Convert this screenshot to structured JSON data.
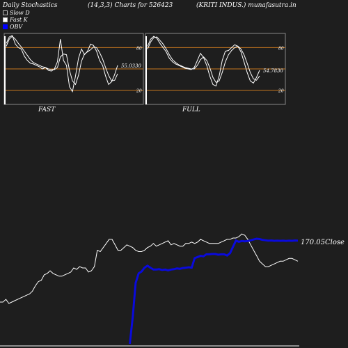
{
  "header": {
    "title": "Daily Stochastics",
    "params": "(14,3,3) Charts for 526423",
    "company": "(KRITI INDUS.) munafasutra.in"
  },
  "legend": [
    {
      "label": "Slow  D",
      "color": "#ffffff"
    },
    {
      "label": "Fast K",
      "color": "#ffffff"
    },
    {
      "label": "OBV",
      "color": "#0000ff"
    }
  ],
  "colors": {
    "background": "#1e1e1e",
    "panel_bg": "#1e1e1e",
    "level_line": "#c8781e",
    "obv": "#0a0adc",
    "close": "#ffffff"
  },
  "chart_data": [
    {
      "type": "line",
      "title": "FAST",
      "ylim": [
        0,
        100
      ],
      "levels": [
        20,
        50,
        80
      ],
      "level_labels": [
        "20",
        "80"
      ],
      "last_value_label": "55.0330",
      "series": [
        {
          "name": "Fast K",
          "values": [
            86,
            95,
            97,
            85,
            80,
            78,
            68,
            62,
            58,
            57,
            55,
            53,
            50,
            52,
            48,
            47,
            50,
            60,
            92,
            62,
            55,
            25,
            18,
            40,
            65,
            78,
            70,
            75,
            85,
            83,
            75,
            62,
            55,
            40,
            28,
            32,
            42,
            55
          ]
        },
        {
          "name": "Slow  D",
          "values": [
            82,
            92,
            96,
            92,
            86,
            81,
            75,
            69,
            63,
            59,
            57,
            55,
            53,
            52,
            50,
            49,
            49,
            52,
            67,
            71,
            70,
            48,
            33,
            28,
            41,
            61,
            71,
            74,
            77,
            81,
            80,
            73,
            64,
            52,
            41,
            33,
            34,
            43
          ]
        }
      ]
    },
    {
      "type": "line",
      "title": "FULL",
      "ylim": [
        0,
        100
      ],
      "levels": [
        20,
        50,
        80
      ],
      "level_labels": [
        "20",
        "80"
      ],
      "last_value_label": "54.7830",
      "series": [
        {
          "name": "Fast K",
          "values": [
            82,
            92,
            96,
            93,
            86,
            80,
            74,
            65,
            60,
            57,
            55,
            53,
            51,
            50,
            49,
            52,
            62,
            72,
            66,
            55,
            40,
            28,
            26,
            40,
            62,
            75,
            76,
            80,
            84,
            82,
            74,
            60,
            45,
            33,
            30,
            38,
            48
          ]
        },
        {
          "name": "Slow  D",
          "values": [
            78,
            88,
            94,
            95,
            90,
            85,
            78,
            70,
            63,
            59,
            56,
            54,
            52,
            51,
            50,
            50,
            55,
            63,
            67,
            62,
            52,
            38,
            31,
            33,
            45,
            60,
            70,
            76,
            80,
            82,
            78,
            70,
            58,
            45,
            36,
            34,
            40
          ]
        }
      ]
    },
    {
      "type": "line",
      "title": "",
      "close_label": "170.05Close",
      "series": [
        {
          "name": "Close",
          "values": [
            140,
            140,
            142,
            139,
            140,
            141,
            142,
            143,
            144,
            145,
            146,
            148,
            152,
            155,
            156,
            160,
            161,
            163,
            161,
            160,
            159,
            159,
            160,
            161,
            162,
            165,
            164,
            166,
            165,
            165,
            162,
            163,
            166,
            178,
            177,
            180,
            183,
            186,
            186,
            182,
            178,
            178,
            180,
            182,
            181,
            180,
            178,
            177,
            177,
            178,
            180,
            181,
            183,
            181,
            182,
            183,
            184,
            185,
            182,
            183,
            182,
            181,
            181,
            183,
            183,
            184,
            183,
            184,
            186,
            185,
            184,
            183,
            183,
            183,
            183,
            184,
            185,
            186,
            186,
            187,
            187,
            188,
            190,
            189,
            186,
            182,
            178,
            174,
            170,
            168,
            166,
            166,
            167,
            168,
            169,
            170,
            170,
            171,
            172,
            172,
            171,
            170
          ]
        },
        {
          "name": "OBV",
          "values": [
            null,
            null,
            null,
            null,
            null,
            null,
            null,
            null,
            null,
            null,
            null,
            null,
            null,
            null,
            null,
            null,
            null,
            null,
            null,
            null,
            null,
            null,
            null,
            null,
            null,
            null,
            null,
            null,
            null,
            null,
            null,
            null,
            null,
            null,
            null,
            null,
            null,
            null,
            null,
            null,
            null,
            null,
            null,
            null,
            -500,
            200,
            1100,
            1350,
            1400,
            1500,
            1550,
            1500,
            1450,
            1450,
            1460,
            1440,
            1450,
            1430,
            1450,
            1460,
            1480,
            1470,
            1490,
            1500,
            1510,
            1500,
            1750,
            1780,
            1810,
            1800,
            1850,
            1850,
            1860,
            1860,
            1840,
            1850,
            1850,
            1820,
            1880,
            2050,
            2210,
            2180,
            2200,
            2190,
            2200,
            2220,
            2240,
            2260,
            2250,
            2230,
            2220,
            2210,
            2215,
            2205,
            2210,
            2205,
            2208,
            2204,
            2210,
            2206,
            2215,
            2210
          ]
        }
      ]
    }
  ]
}
